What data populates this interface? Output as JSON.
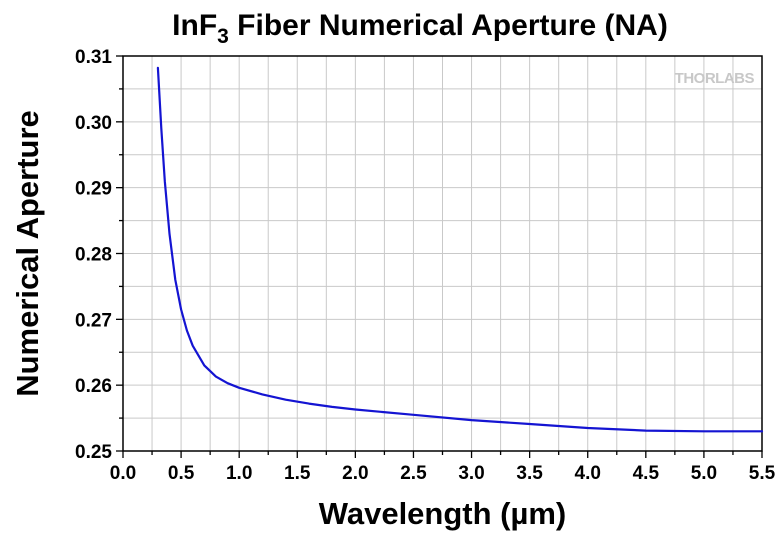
{
  "chart_data": {
    "type": "line",
    "title": {
      "prefix": "InF",
      "subscript": "3",
      "suffix": " Fiber Numerical Aperture (NA)"
    },
    "xlabel": "Wavelength (µm)",
    "ylabel": "Numerical Aperture",
    "xlim": [
      0.0,
      5.5
    ],
    "ylim": [
      0.25,
      0.31
    ],
    "x_ticks": [
      "0.0",
      "0.5",
      "1.0",
      "1.5",
      "2.0",
      "2.5",
      "3.0",
      "3.5",
      "4.0",
      "4.5",
      "5.0",
      "5.5"
    ],
    "y_ticks": [
      "0.25",
      "0.26",
      "0.27",
      "0.28",
      "0.29",
      "0.30",
      "0.31"
    ],
    "grid": true,
    "watermark": "THORLABS",
    "series": [
      {
        "name": "NA",
        "color": "#1414d2",
        "x": [
          0.3,
          0.33,
          0.36,
          0.4,
          0.45,
          0.5,
          0.55,
          0.6,
          0.7,
          0.8,
          0.9,
          1.0,
          1.2,
          1.4,
          1.6,
          1.8,
          2.0,
          2.5,
          3.0,
          3.5,
          4.0,
          4.5,
          5.0,
          5.5
        ],
        "y": [
          0.3082,
          0.299,
          0.291,
          0.283,
          0.276,
          0.2715,
          0.2683,
          0.266,
          0.263,
          0.2613,
          0.2603,
          0.2596,
          0.2586,
          0.2578,
          0.2572,
          0.2567,
          0.2563,
          0.2555,
          0.2547,
          0.2541,
          0.2535,
          0.2531,
          0.253,
          0.253
        ]
      }
    ]
  }
}
